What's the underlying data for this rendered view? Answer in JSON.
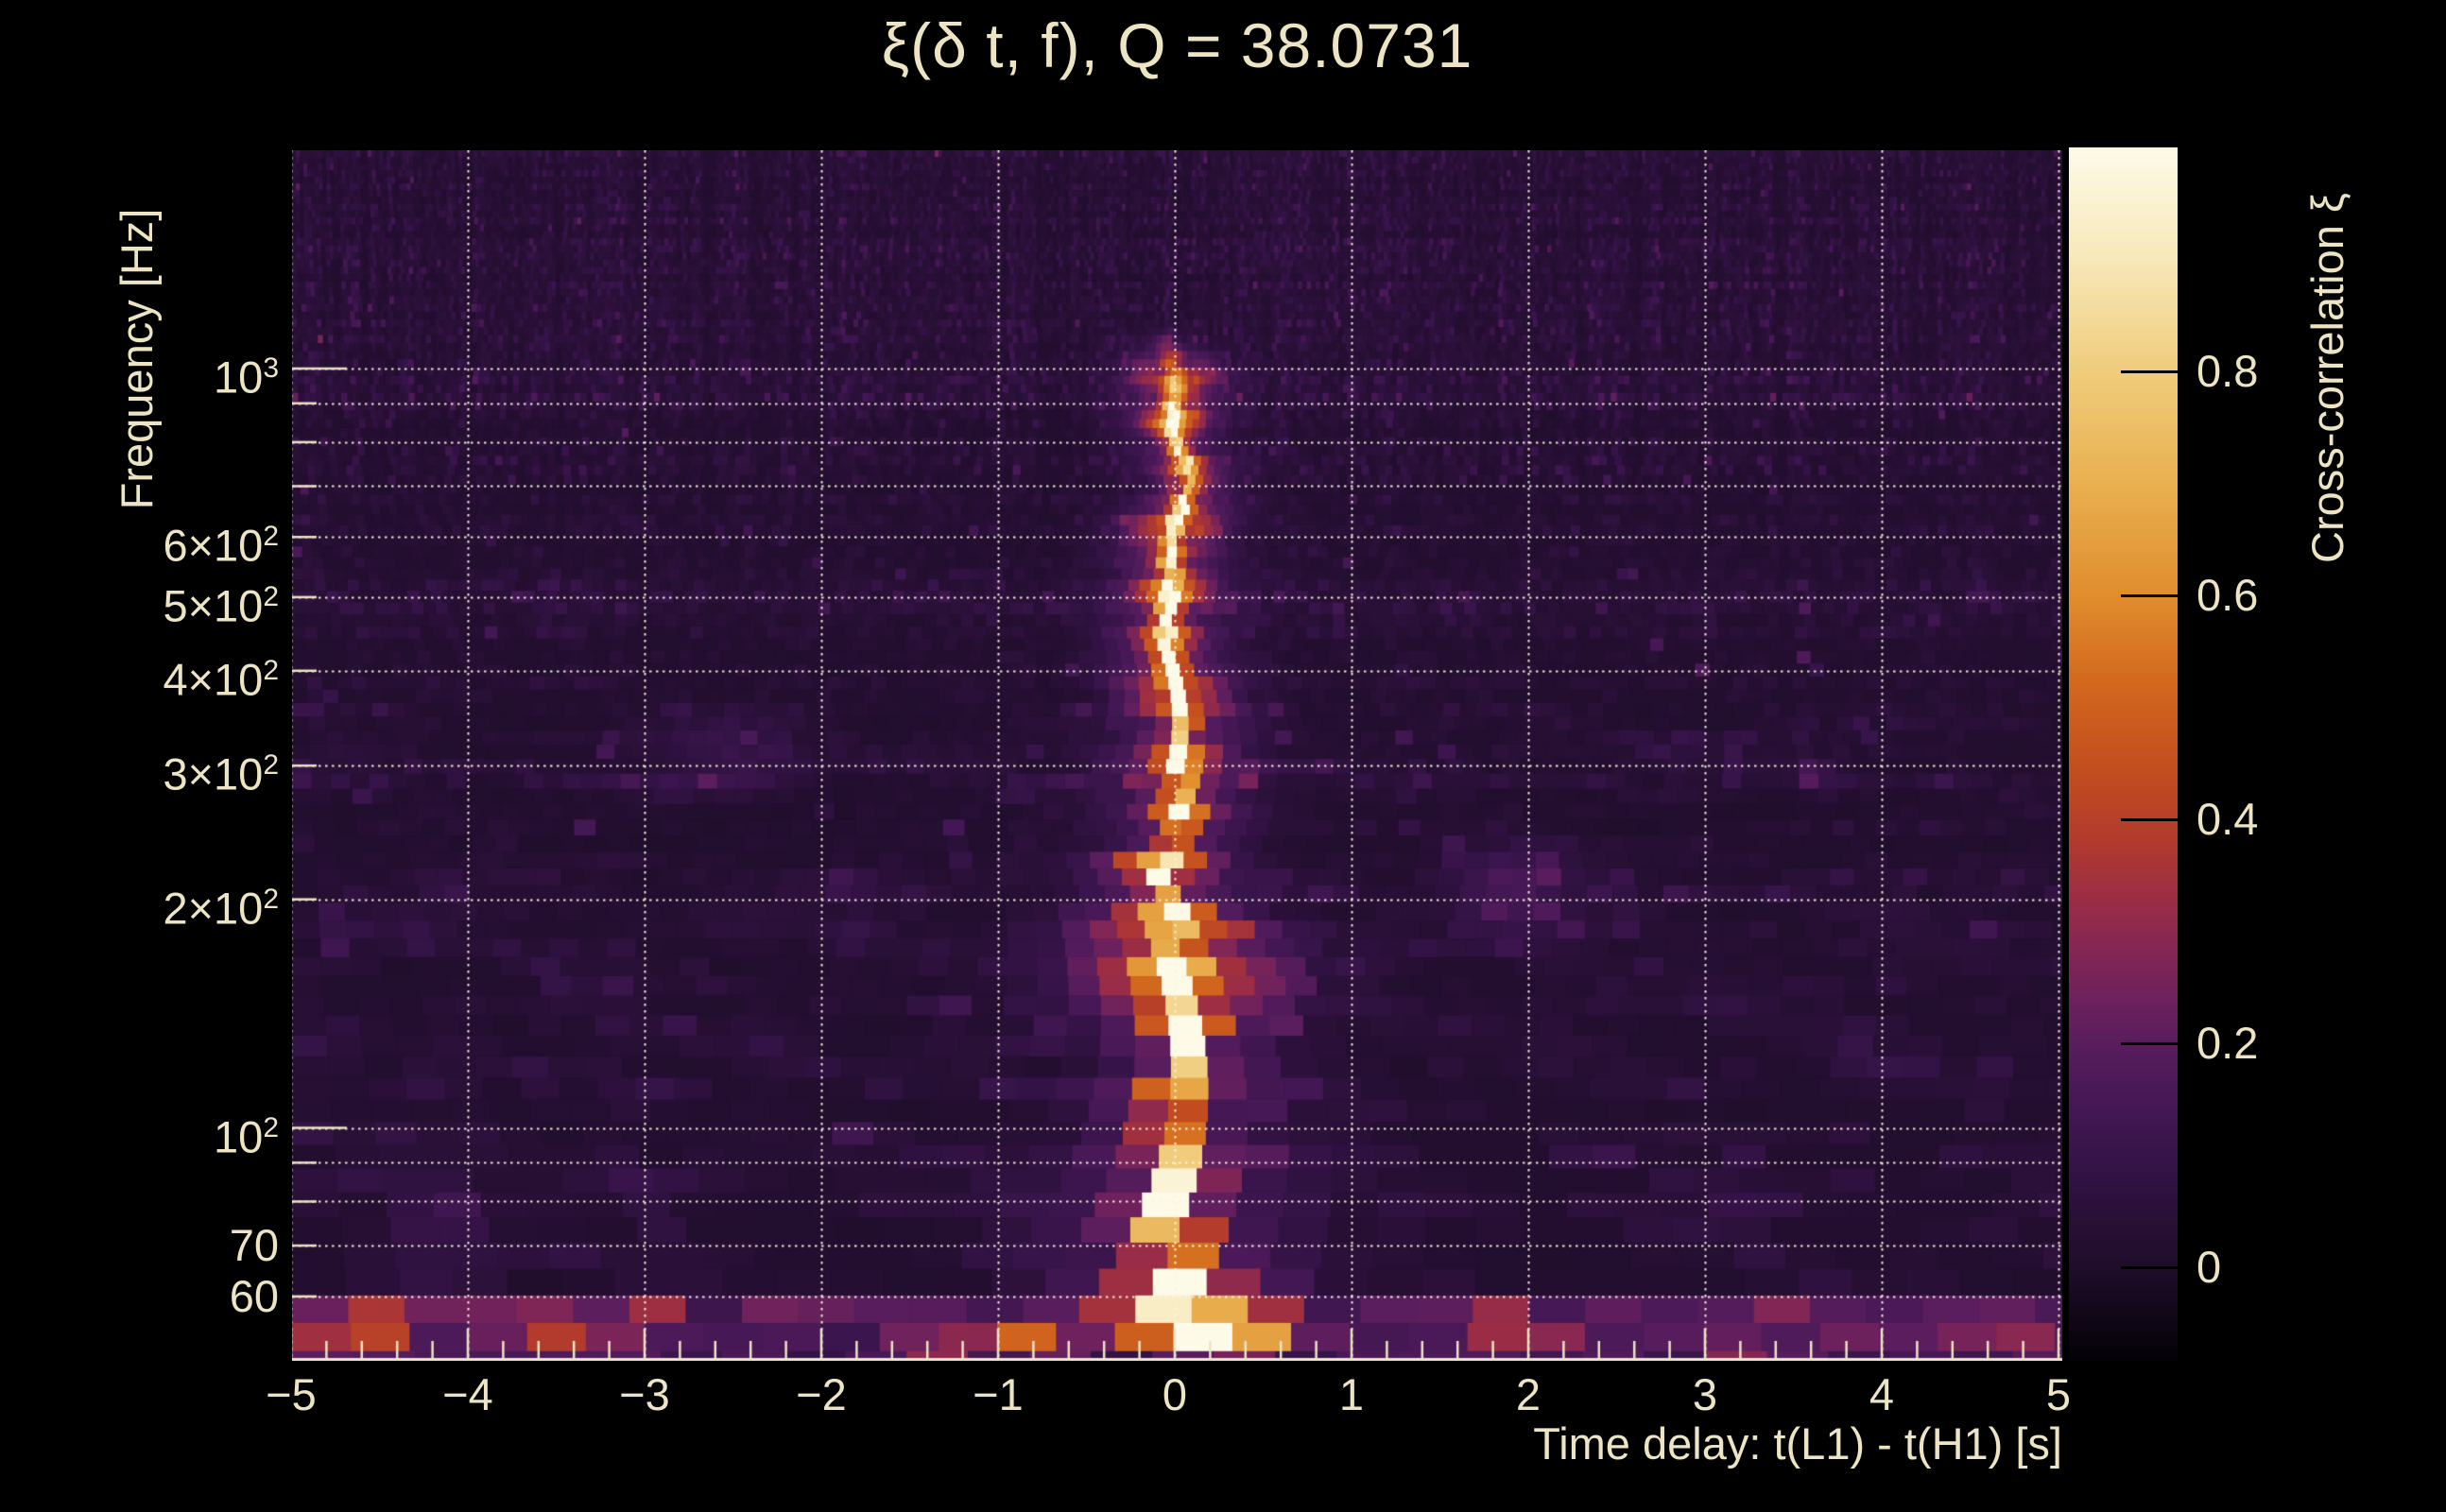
{
  "chart_data": {
    "type": "heatmap",
    "title": "ξ(δ t, f), Q = 38.0731",
    "q_value": 38.0731,
    "xlabel": "Time delay: t(L1) - t(H1) [s]",
    "ylabel": "Frequency [Hz]",
    "colorbar_label": "Cross-correlation ξ",
    "x_range_s": [
      -5,
      5
    ],
    "x_minor_step_s": 0.2,
    "y_scale": "log",
    "y_range_hz": [
      49,
      1940
    ],
    "z_range_xi": [
      -0.083,
      1.0
    ],
    "grid": true,
    "x_ticks": [
      {
        "v": -5,
        "label": "−5"
      },
      {
        "v": -4,
        "label": "−4"
      },
      {
        "v": -3,
        "label": "−3"
      },
      {
        "v": -2,
        "label": "−2"
      },
      {
        "v": -1,
        "label": "−1"
      },
      {
        "v": 0,
        "label": "0"
      },
      {
        "v": 1,
        "label": "1"
      },
      {
        "v": 2,
        "label": "2"
      },
      {
        "v": 3,
        "label": "3"
      },
      {
        "v": 4,
        "label": "4"
      },
      {
        "v": 5,
        "label": "5"
      }
    ],
    "y_ticks": [
      {
        "f": 1000,
        "base": "10",
        "sup": "3"
      },
      {
        "f": 600,
        "base": "6×10",
        "sup": "2"
      },
      {
        "f": 500,
        "base": "5×10",
        "sup": "2"
      },
      {
        "f": 400,
        "base": "4×10",
        "sup": "2"
      },
      {
        "f": 300,
        "base": "3×10",
        "sup": "2"
      },
      {
        "f": 200,
        "base": "2×10",
        "sup": "2"
      },
      {
        "f": 100,
        "base": "10",
        "sup": "2"
      },
      {
        "f": 70,
        "base": "70",
        "sup": ""
      },
      {
        "f": 60,
        "base": "60",
        "sup": ""
      }
    ],
    "y_gridlines_hz": [
      60,
      70,
      80,
      90,
      100,
      200,
      300,
      400,
      500,
      600,
      700,
      800,
      900,
      1000
    ],
    "colorbar_ticks": [
      {
        "v": 0.8,
        "label": "0.8"
      },
      {
        "v": 0.6,
        "label": "0.6"
      },
      {
        "v": 0.4,
        "label": "0.4"
      },
      {
        "v": 0.2,
        "label": "0.2"
      },
      {
        "v": 0.0,
        "label": "0"
      }
    ],
    "colormap_stops": [
      {
        "v": -0.083,
        "c": "#040207"
      },
      {
        "v": 0.0,
        "c": "#1f0d2a"
      },
      {
        "v": 0.05,
        "c": "#2a1038"
      },
      {
        "v": 0.1,
        "c": "#37144a"
      },
      {
        "v": 0.16,
        "c": "#4a1958"
      },
      {
        "v": 0.2,
        "c": "#591d5d"
      },
      {
        "v": 0.24,
        "c": "#6d215c"
      },
      {
        "v": 0.28,
        "c": "#822655"
      },
      {
        "v": 0.33,
        "c": "#9b2d45"
      },
      {
        "v": 0.38,
        "c": "#b13a2f"
      },
      {
        "v": 0.44,
        "c": "#c24c1f"
      },
      {
        "v": 0.52,
        "c": "#d2671e"
      },
      {
        "v": 0.6,
        "c": "#e08d2d"
      },
      {
        "v": 0.7,
        "c": "#e9b050"
      },
      {
        "v": 0.8,
        "c": "#f0cc7c"
      },
      {
        "v": 0.9,
        "c": "#f7e8b8"
      },
      {
        "v": 1.0,
        "c": "#fdfae8"
      }
    ],
    "features": {
      "noise_floor_xi": 0.05,
      "central_ridge": {
        "dt_s": 0.0,
        "f_min_hz": 52,
        "f_max_hz": 1150,
        "peak_xi": 0.97,
        "knots": [
          {
            "f": 1040,
            "a": 0.4
          },
          {
            "f": 955,
            "a": 0.5
          },
          {
            "f": 860,
            "a": 0.45
          },
          {
            "f": 760,
            "a": 0.35
          },
          {
            "f": 640,
            "a": 0.5
          },
          {
            "f": 565,
            "a": 0.45
          },
          {
            "f": 500,
            "a": 0.5
          },
          {
            "f": 448,
            "a": 0.42
          },
          {
            "f": 398,
            "a": 0.55
          },
          {
            "f": 352,
            "a": 0.48
          },
          {
            "f": 300,
            "a": 0.55
          },
          {
            "f": 258,
            "a": 0.52
          },
          {
            "f": 222,
            "a": 0.55
          },
          {
            "f": 192,
            "a": 0.55
          },
          {
            "f": 160,
            "a": 0.7
          },
          {
            "f": 134,
            "a": 0.6
          },
          {
            "f": 110,
            "a": 0.6
          },
          {
            "f": 92,
            "a": 0.62
          },
          {
            "f": 76,
            "a": 0.72
          },
          {
            "f": 64,
            "a": 0.95
          },
          {
            "f": 55,
            "a": 0.9
          }
        ]
      },
      "bottom_band": {
        "f_max_hz": 58,
        "hotspots": [
          {
            "dt": -4.65,
            "f": 53,
            "a": 0.45,
            "s": 0.13
          },
          {
            "dt": -3.55,
            "f": 52,
            "a": 0.22,
            "s": 0.16
          },
          {
            "dt": -3.05,
            "f": 56,
            "a": 0.16,
            "s": 0.14
          },
          {
            "dt": -1.35,
            "f": 52,
            "a": 0.26,
            "s": 0.12
          },
          {
            "dt": -0.85,
            "f": 51,
            "a": 0.2,
            "s": 0.1
          },
          {
            "dt": 0.32,
            "f": 53,
            "a": 0.55,
            "s": 0.2
          },
          {
            "dt": 1.95,
            "f": 55,
            "a": 0.3,
            "s": 0.1
          },
          {
            "dt": 3.3,
            "f": 50,
            "a": 0.26,
            "s": 0.08
          },
          {
            "dt": 4.75,
            "f": 51,
            "a": 0.22,
            "s": 0.1
          }
        ]
      },
      "noise_bands": [
        {
          "f1": 880,
          "f2": 990,
          "g": 1.7
        },
        {
          "f1": 700,
          "f2": 760,
          "g": 1.3
        },
        {
          "f1": 470,
          "f2": 540,
          "g": 1.45
        },
        {
          "f1": 275,
          "f2": 315,
          "g": 1.4
        },
        {
          "f1": 175,
          "f2": 215,
          "g": 1.55
        },
        {
          "f1": 85,
          "f2": 105,
          "g": 1.35
        },
        {
          "f1": 49,
          "f2": 58,
          "g": 2.6
        },
        {
          "f1": 215,
          "f2": 265,
          "g": 0.85
        }
      ],
      "faint_blobs": [
        {
          "dt": 1.9,
          "f": 205,
          "a": 0.12,
          "sx": 0.25,
          "sf": 0.1
        },
        {
          "dt": -2.55,
          "f": 310,
          "a": 0.07,
          "sx": 0.3,
          "sf": 0.08
        },
        {
          "dt": -4.15,
          "f": 75,
          "a": 0.1,
          "sx": 0.2,
          "sf": 0.12
        }
      ]
    },
    "text_color": "#ece4c3",
    "grid_color": "#f6f0da",
    "background": "#000000"
  }
}
